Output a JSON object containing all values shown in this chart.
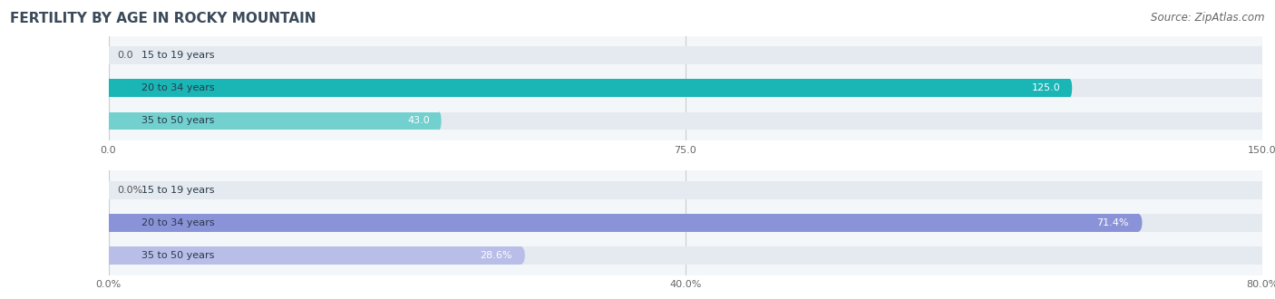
{
  "title": "FERTILITY BY AGE IN ROCKY MOUNTAIN",
  "source": "Source: ZipAtlas.com",
  "chart1": {
    "categories": [
      "15 to 19 years",
      "20 to 34 years",
      "35 to 50 years"
    ],
    "values": [
      0.0,
      125.0,
      43.0
    ],
    "xlim": [
      0,
      150.0
    ],
    "xticks": [
      0.0,
      75.0,
      150.0
    ],
    "xtick_labels": [
      "0.0",
      "75.0",
      "150.0"
    ],
    "bar_colors": [
      "#5ecfce",
      "#1ab5b5",
      "#72d0cf"
    ],
    "bg_bar_color": "#e4eaf0",
    "bg_color": "#f4f7fa"
  },
  "chart2": {
    "categories": [
      "15 to 19 years",
      "20 to 34 years",
      "35 to 50 years"
    ],
    "values": [
      0.0,
      71.4,
      28.6
    ],
    "xlim": [
      0,
      80.0
    ],
    "xticks": [
      0.0,
      40.0,
      80.0
    ],
    "xtick_labels": [
      "0.0%",
      "40.0%",
      "80.0%"
    ],
    "bar_colors": [
      "#a8aee0",
      "#8b93d8",
      "#b8bee8"
    ],
    "bg_bar_color": "#e4eaf0",
    "bg_color": "#f4f7fa"
  },
  "title_color": "#3a4a5a",
  "title_fontsize": 11,
  "source_fontsize": 8.5,
  "source_color": "#666666",
  "category_fontsize": 8,
  "value_fontsize": 8,
  "tick_fontsize": 8,
  "bar_height": 0.55
}
